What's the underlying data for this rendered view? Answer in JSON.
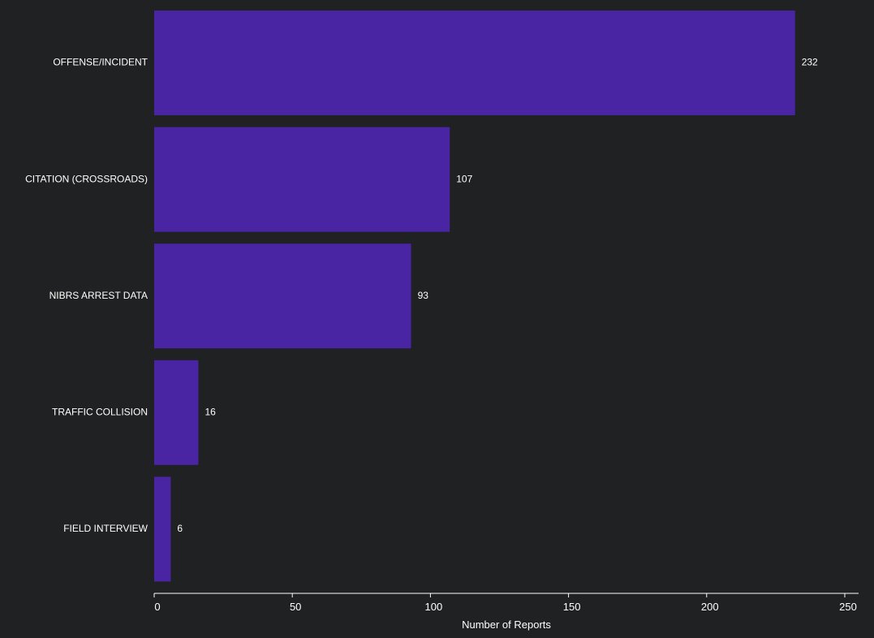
{
  "chart_data": {
    "type": "bar",
    "orientation": "horizontal",
    "categories": [
      "OFFENSE/INCIDENT",
      "CITATION (CROSSROADS)",
      "NIBRS ARREST DATA",
      "TRAFFIC COLLISION",
      "FIELD INTERVIEW"
    ],
    "values": [
      232,
      107,
      93,
      16,
      6
    ],
    "title": "",
    "xlabel": "Number of Reports",
    "ylabel": "",
    "xlim": [
      0,
      255
    ],
    "xticks": [
      0,
      50,
      100,
      150,
      200,
      250
    ],
    "grid": false,
    "data_labels": true
  },
  "colors": {
    "background": "#202122",
    "bar": "#4a25a3",
    "text": "#ffffff",
    "axis": "#ffffff"
  }
}
